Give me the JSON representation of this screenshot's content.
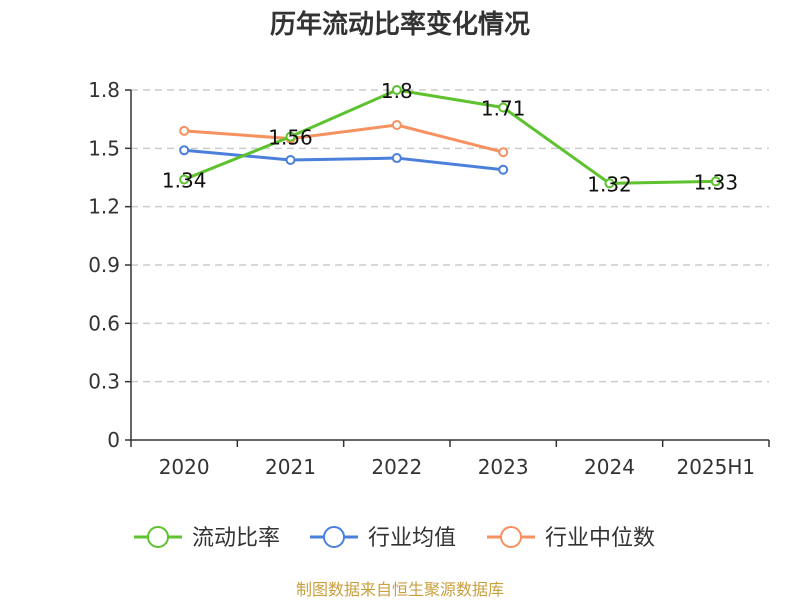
{
  "chart_data": {
    "type": "line",
    "title": "历年流动比率变化情况",
    "categories": [
      "2020",
      "2021",
      "2022",
      "2023",
      "2024",
      "2025H1"
    ],
    "yticks": [
      "0",
      "0.3",
      "0.6",
      "0.9",
      "1.2",
      "1.5",
      "1.8"
    ],
    "ylim": [
      0,
      1.8
    ],
    "grid": true,
    "legend_position": "bottom",
    "series": [
      {
        "name": "流动比率",
        "color": "#5dc22e",
        "values": [
          1.34,
          1.56,
          1.8,
          1.71,
          1.32,
          1.33
        ],
        "labels": [
          "1.34",
          "1.56",
          "1.8",
          "1.71",
          "1.32",
          "1.33"
        ]
      },
      {
        "name": "行业均值",
        "color": "#4a7fdc",
        "values": [
          1.49,
          1.44,
          1.45,
          1.39,
          null,
          null
        ]
      },
      {
        "name": "行业中位数",
        "color": "#f79160",
        "values": [
          1.59,
          1.55,
          1.62,
          1.48,
          null,
          null
        ]
      }
    ],
    "source": "制图数据来自恒生聚源数据库"
  }
}
